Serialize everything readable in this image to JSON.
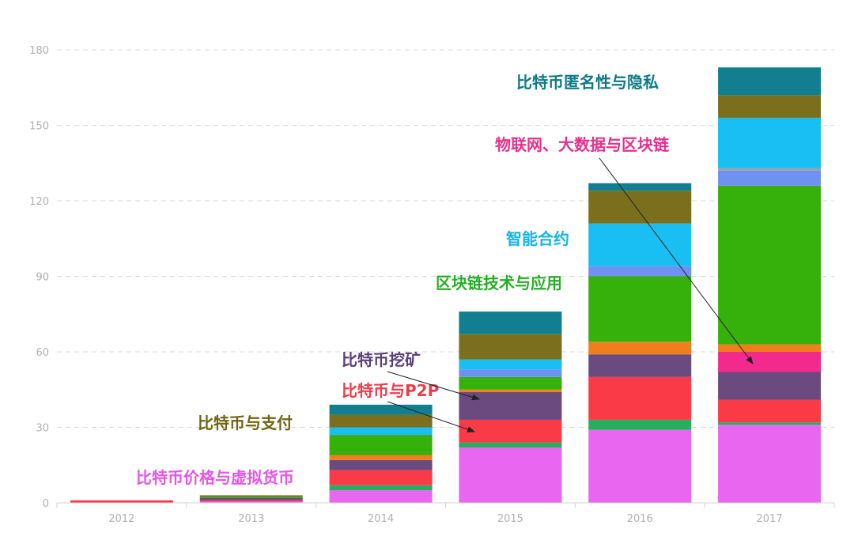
{
  "chart_data": {
    "type": "bar",
    "stacked": true,
    "title": "",
    "xlabel": "",
    "ylabel": "",
    "categories": [
      "2012",
      "2013",
      "2014",
      "2015",
      "2016",
      "2017"
    ],
    "ylim": [
      0,
      180
    ],
    "yticks": [
      0,
      30,
      60,
      90,
      120,
      150,
      180
    ],
    "grid": true,
    "series": [
      {
        "values": [
          0,
          0.5,
          5,
          22,
          29,
          31
        ],
        "color": "#e866f0"
      },
      {
        "values": [
          0,
          0,
          2,
          2,
          4,
          1
        ],
        "color": "#27ae60"
      },
      {
        "values": [
          1,
          0.5,
          6,
          9,
          17,
          9
        ],
        "color": "#fb3a48"
      },
      {
        "values": [
          0,
          1,
          4,
          11,
          9,
          11
        ],
        "color": "#6b4a80"
      },
      {
        "values": [
          0,
          0,
          0,
          0,
          0,
          8
        ],
        "color": "#f32a8e"
      },
      {
        "values": [
          0,
          0,
          2,
          1,
          5,
          3
        ],
        "color": "#f07e1e"
      },
      {
        "values": [
          0,
          0.5,
          8,
          5,
          26,
          63
        ],
        "color": "#36b00a"
      },
      {
        "values": [
          0,
          0,
          0,
          3,
          4,
          6
        ],
        "color": "#6f91f2"
      },
      {
        "values": [
          0,
          0,
          0,
          0,
          0,
          1
        ],
        "color": "#9aa0a8"
      },
      {
        "values": [
          0,
          0,
          3,
          4,
          17,
          20
        ],
        "color": "#19bff2"
      },
      {
        "values": [
          0,
          0.5,
          5,
          10,
          13,
          9
        ],
        "color": "#7b6e1c"
      },
      {
        "values": [
          0,
          0,
          4,
          9,
          3,
          11
        ],
        "color": "#117f8f"
      }
    ]
  },
  "annotations": [
    {
      "text": "比特币价格与虚拟货币",
      "color": "#e455e8"
    },
    {
      "text": "比特币与支付",
      "color": "#6f6410"
    },
    {
      "text": "比特币与P2P",
      "color": "#f23a48"
    },
    {
      "text": "比特币挖矿",
      "color": "#5a3f78"
    },
    {
      "text": "区块链技术与应用",
      "color": "#27ae28"
    },
    {
      "text": "智能合约",
      "color": "#15b4e8"
    },
    {
      "text": "物联网、大数据与区块链",
      "color": "#e8308a"
    },
    {
      "text": "比特币匿名性与隐私",
      "color": "#0e7a86"
    }
  ]
}
